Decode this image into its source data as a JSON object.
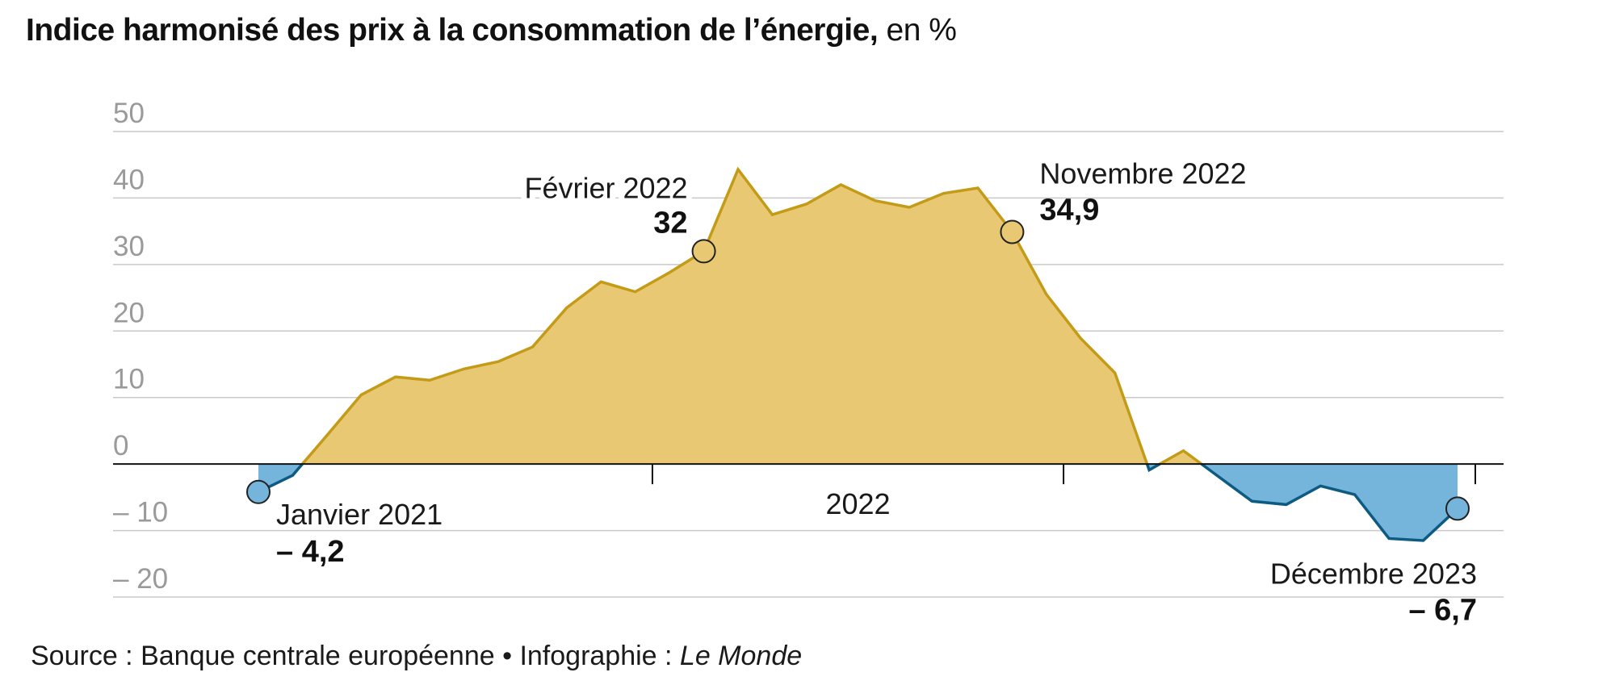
{
  "title": {
    "main": "Indice harmonisé des prix à la consommation de l’énergie,",
    "unit": "en %"
  },
  "source": {
    "prefix": "Source : Banque centrale européenne • Infographie : ",
    "credit": "Le Monde"
  },
  "colors": {
    "positive_fill": "#E9C874",
    "positive_line": "#C49B17",
    "negative_fill": "#76B5DB",
    "negative_line": "#0D5B82",
    "grid": "#c9c9c9",
    "axis": "#111111"
  },
  "chart_data": {
    "type": "area",
    "title": "Indice harmonisé des prix à la consommation de l’énergie, en %",
    "x_start": "2021-01",
    "x_end": "2023-12",
    "ylim": [
      -20,
      50
    ],
    "yticks": [
      50,
      40,
      30,
      20,
      10,
      0,
      -10,
      -20
    ],
    "ytick_labels": [
      "50",
      "40",
      "30",
      "20",
      "10",
      "0",
      "– 10",
      "– 20"
    ],
    "xaxis_labels": [
      "2022"
    ],
    "x_boundary_ticks": [
      "2022-01",
      "2023-01",
      "2023-12"
    ],
    "x": [
      "2021-01",
      "2021-02",
      "2021-03",
      "2021-04",
      "2021-05",
      "2021-06",
      "2021-07",
      "2021-08",
      "2021-09",
      "2021-10",
      "2021-11",
      "2021-12",
      "2022-01",
      "2022-02",
      "2022-03",
      "2022-04",
      "2022-05",
      "2022-06",
      "2022-07",
      "2022-08",
      "2022-09",
      "2022-10",
      "2022-11",
      "2022-12",
      "2023-01",
      "2023-02",
      "2023-03",
      "2023-04",
      "2023-05",
      "2023-06",
      "2023-07",
      "2023-08",
      "2023-09",
      "2023-10",
      "2023-11",
      "2023-12"
    ],
    "values": [
      -4.2,
      -1.7,
      4.3,
      10.4,
      13.1,
      12.6,
      14.3,
      15.4,
      17.6,
      23.5,
      27.4,
      25.9,
      28.8,
      32.0,
      44.3,
      37.5,
      39.1,
      42.0,
      39.6,
      38.6,
      40.7,
      41.5,
      34.9,
      25.5,
      18.9,
      13.7,
      -0.9,
      2.0,
      -1.8,
      -5.6,
      -6.1,
      -3.3,
      -4.6,
      -11.2,
      -11.5,
      -6.7
    ],
    "annotations": [
      {
        "x": "2021-01",
        "value": -4.2,
        "label": "Janvier 2021",
        "value_label": "– 4,2"
      },
      {
        "x": "2022-02",
        "value": 32.0,
        "label": "Février 2022",
        "value_label": "32"
      },
      {
        "x": "2022-11",
        "value": 34.9,
        "label": "Novembre 2022",
        "value_label": "34,9"
      },
      {
        "x": "2023-12",
        "value": -6.7,
        "label": "Décembre 2023",
        "value_label": "– 6,7"
      }
    ]
  }
}
